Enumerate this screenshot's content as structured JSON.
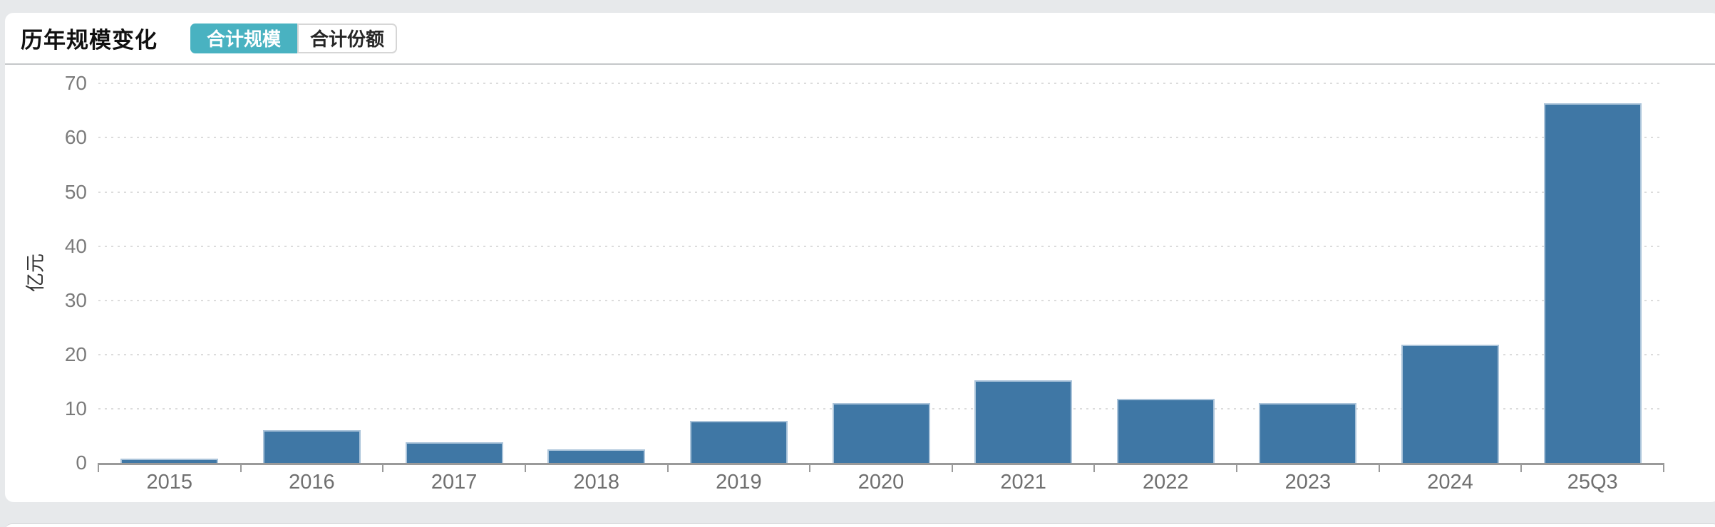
{
  "header": {
    "title": "历年规模变化",
    "tabs": [
      {
        "label": "合计规模",
        "active": true
      },
      {
        "label": "合计份额",
        "active": false
      }
    ]
  },
  "colors": {
    "page_background": "#e7e9eb",
    "card_background": "#ffffff",
    "tab_active_bg": "#49b2c1",
    "tab_active_text": "#ffffff",
    "bar_fill": "#3f77a5",
    "bar_border": "#abc4da",
    "gridline": "#dcdcdc",
    "axis_line": "#9a9a9a",
    "axis_label_text": "#7b7b7b"
  },
  "chart_data": {
    "type": "bar",
    "title": "历年规模变化",
    "categories": [
      "2015",
      "2016",
      "2017",
      "2018",
      "2019",
      "2020",
      "2021",
      "2022",
      "2023",
      "2024",
      "25Q3"
    ],
    "values": [
      0.8,
      6.1,
      3.8,
      2.5,
      7.8,
      11.1,
      15.2,
      11.8,
      11.0,
      21.8,
      66.4
    ],
    "xlabel": "",
    "ylabel": "亿元",
    "yticks": [
      0,
      10,
      20,
      30,
      40,
      50,
      60,
      70
    ],
    "ylim": [
      0,
      70
    ],
    "grid": "horizontal-dotted",
    "legend_position": "none",
    "bar_color": "#3f77a5"
  }
}
